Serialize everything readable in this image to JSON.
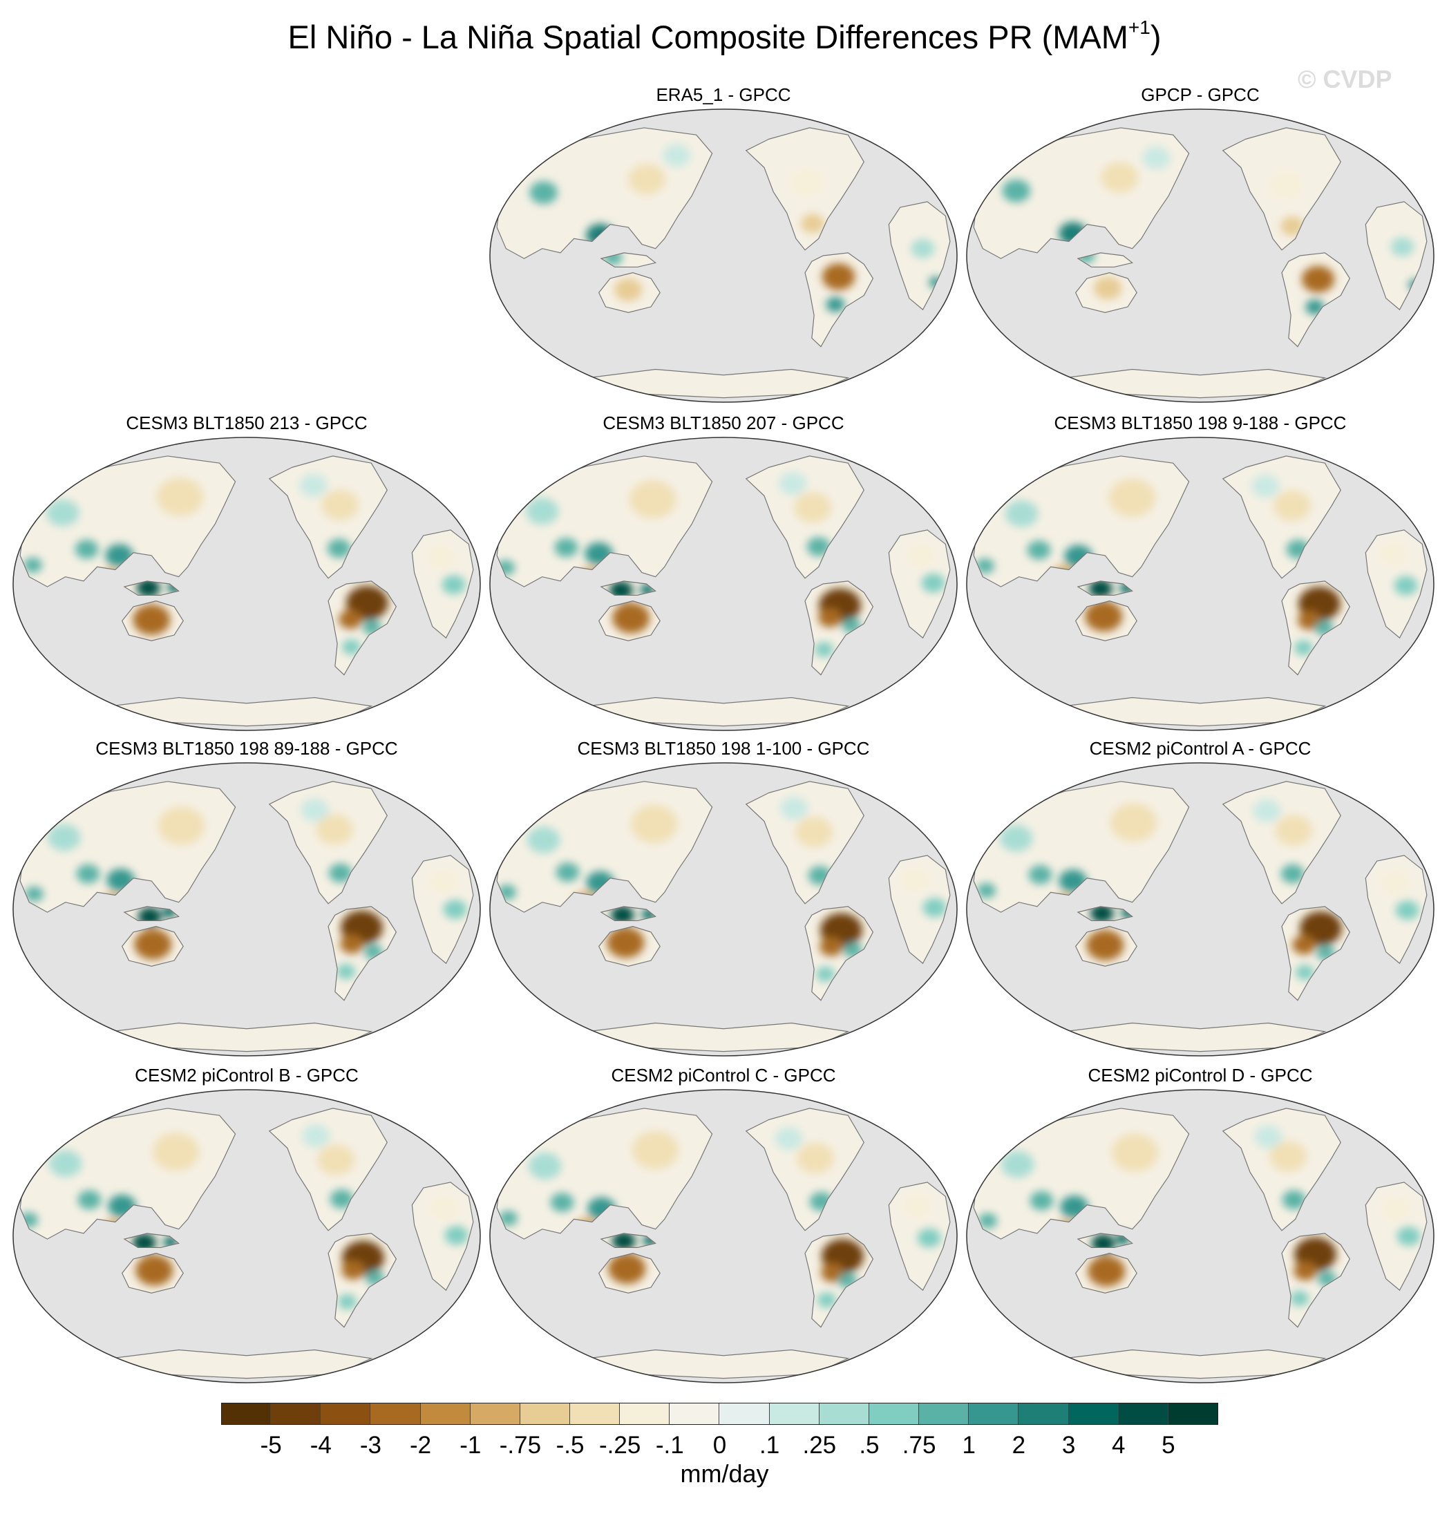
{
  "figure": {
    "title_prefix": "El Niño - La Niña Spatial Composite Differences PR (MAM",
    "title_superscript": "+1",
    "title_suffix": ")",
    "watermark": "© CVDP"
  },
  "panels": [
    {
      "title": "ERA5_1 - GPCC",
      "pattern": "obs"
    },
    {
      "title": "GPCP - GPCC",
      "pattern": "obs"
    },
    {
      "title": "CESM3 BLT1850 213 - GPCC",
      "pattern": "model"
    },
    {
      "title": "CESM3 BLT1850 207 - GPCC",
      "pattern": "model"
    },
    {
      "title": "CESM3 BLT1850 198 9-188 - GPCC",
      "pattern": "model"
    },
    {
      "title": "CESM3 BLT1850 198 89-188 - GPCC",
      "pattern": "model"
    },
    {
      "title": "CESM3 BLT1850 198 1-100 - GPCC",
      "pattern": "model"
    },
    {
      "title": "CESM2 piControl A - GPCC",
      "pattern": "model"
    },
    {
      "title": "CESM2 piControl B - GPCC",
      "pattern": "model"
    },
    {
      "title": "CESM2 piControl C - GPCC",
      "pattern": "model"
    },
    {
      "title": "CESM2 piControl D - GPCC",
      "pattern": "model"
    }
  ],
  "colorbar": {
    "unit": "mm/day",
    "labels": [
      "-5",
      "-4",
      "-3",
      "-2",
      "-1",
      "-.75",
      "-.5",
      "-.25",
      "-.1",
      "0",
      ".1",
      ".25",
      ".5",
      ".75",
      "1",
      "2",
      "3",
      "4",
      "5"
    ],
    "colors": [
      "#543005",
      "#6e3f0b",
      "#8c5110",
      "#a86a20",
      "#c28a3c",
      "#d6aa65",
      "#e7cc94",
      "#f1e0b6",
      "#f6efd9",
      "#f5f2ea",
      "#e6f1ef",
      "#c9e9e3",
      "#a8ddd4",
      "#80cdc1",
      "#5ab2a6",
      "#35978f",
      "#1d7f76",
      "#01665e",
      "#014d43",
      "#003c30"
    ]
  },
  "colors": {
    "ocean": "#e3e3e3",
    "land": "#f5f0e4",
    "coast": "#777777"
  }
}
